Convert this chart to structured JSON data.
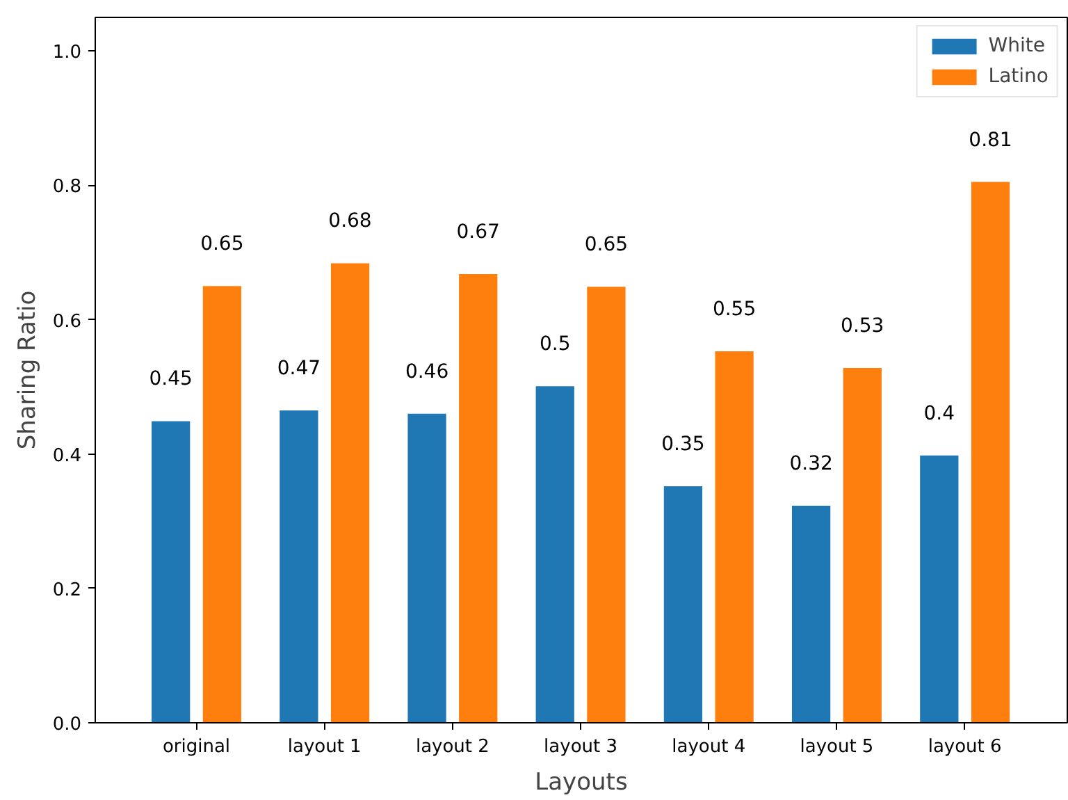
{
  "chart_data": {
    "type": "bar",
    "xlabel": "Layouts",
    "ylabel": "Sharing Ratio",
    "categories": [
      "original",
      "layout 1",
      "layout 2",
      "layout 3",
      "layout 4",
      "layout 5",
      "layout 6"
    ],
    "series": [
      {
        "name": "White",
        "color": "#1f77b4",
        "values": [
          0.449,
          0.465,
          0.46,
          0.501,
          0.352,
          0.323,
          0.398
        ],
        "value_labels": [
          "0.45",
          "0.47",
          "0.46",
          "0.5",
          "0.35",
          "0.32",
          "0.4"
        ]
      },
      {
        "name": "Latino",
        "color": "#ff7f0e",
        "values": [
          0.65,
          0.684,
          0.668,
          0.649,
          0.553,
          0.528,
          0.805
        ],
        "value_labels": [
          "0.65",
          "0.68",
          "0.67",
          "0.65",
          "0.55",
          "0.53",
          "0.81"
        ]
      }
    ],
    "ylim": [
      0,
      1.05
    ],
    "yticks": [
      {
        "value": 0,
        "label": "0.0"
      },
      {
        "value": 0.2,
        "label": "0.2"
      },
      {
        "value": 0.4,
        "label": "0.4"
      },
      {
        "value": 0.6,
        "label": "0.6"
      },
      {
        "value": 0.8,
        "label": "0.8"
      },
      {
        "value": 1.0,
        "label": "1.0"
      }
    ],
    "grid": false,
    "legend": "top right"
  }
}
